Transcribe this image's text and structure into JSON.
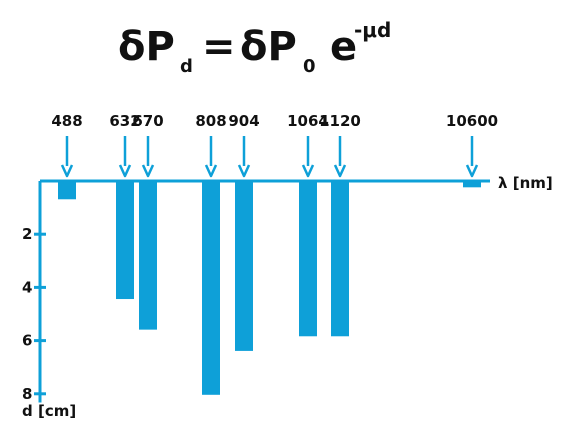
{
  "formula": {
    "lhs_symbol": "δP",
    "lhs_subscript": "d",
    "equals": "=",
    "rhs_symbol": "δP",
    "rhs_subscript": "0",
    "exp_base": "e",
    "exp_power": "-μd"
  },
  "colors": {
    "accent": "#0ea0d8",
    "text": "#111111"
  },
  "chart_data": {
    "type": "bar",
    "categories": [
      "488",
      "632",
      "670",
      "808",
      "904",
      "1064",
      "1120",
      "10600"
    ],
    "values": [
      0.65,
      4.4,
      5.55,
      8.0,
      6.35,
      5.8,
      5.8,
      0.2
    ],
    "xlabel": "λ [nm]",
    "ylabel": "d [cm]",
    "yticks": [
      2,
      4,
      6,
      8
    ],
    "ylim": [
      0,
      8.1
    ],
    "y_direction": "downward",
    "grid": false,
    "legend": "none"
  }
}
